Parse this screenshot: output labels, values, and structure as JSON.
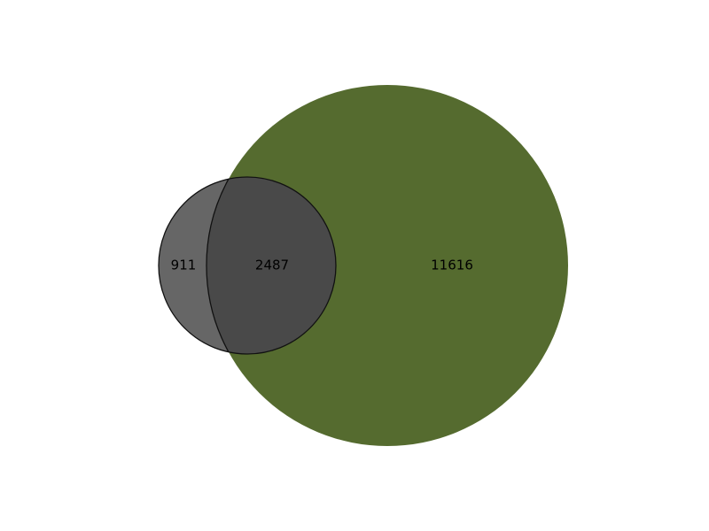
{
  "chart_data": {
    "type": "venn",
    "sets": [
      {
        "color": "#666666"
      },
      {
        "color": "#556b2f"
      }
    ],
    "regions": [
      {
        "sets": [
          0
        ],
        "value": 911
      },
      {
        "sets": [
          0,
          1
        ],
        "value": 2487
      },
      {
        "sets": [
          1
        ],
        "value": 11616
      }
    ],
    "overlap_color": "#494949"
  }
}
